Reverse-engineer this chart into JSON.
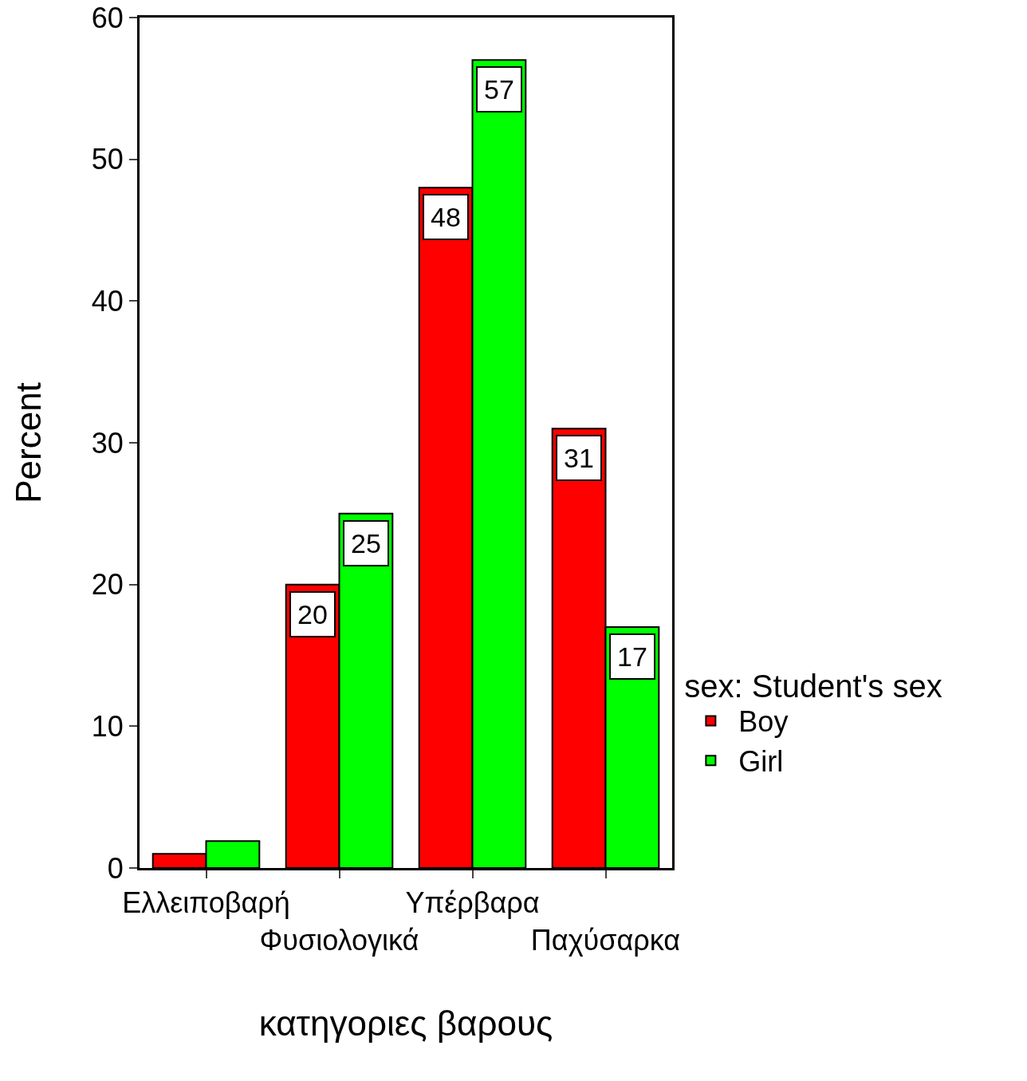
{
  "chart_data": {
    "type": "bar",
    "xlabel": "κατηγοριες βαρους",
    "ylabel": "Percent",
    "legend_title": "sex: Student's sex",
    "categories": [
      "Ελλειποβαρή",
      "Φυσιολογικά",
      "Υπέρβαρα",
      "Παχύσαρκα"
    ],
    "series": [
      {
        "name": "Boy",
        "color": "#ff0000",
        "values": [
          1.0,
          20,
          48,
          31
        ],
        "value_labels": [
          null,
          "20",
          "48",
          "31"
        ]
      },
      {
        "name": "Girl",
        "color": "#00ff00",
        "values": [
          1.9,
          25,
          57,
          17
        ],
        "value_labels": [
          null,
          "25",
          "57",
          "17"
        ]
      }
    ],
    "ylim": [
      0,
      60
    ],
    "yticks": [
      0,
      10,
      20,
      30,
      40,
      50,
      60
    ],
    "grid": false,
    "legend": "right"
  }
}
